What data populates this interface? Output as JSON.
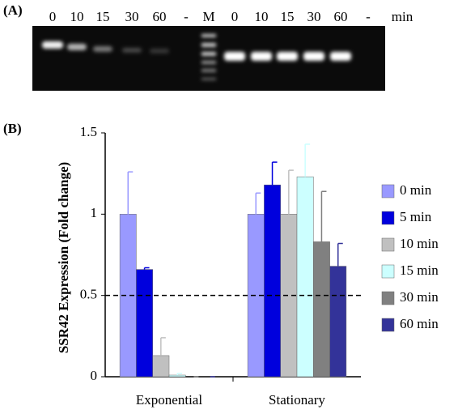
{
  "gel": {
    "panel_label": "(A)",
    "lane_labels": [
      "0",
      "10",
      "15",
      "30",
      "60",
      "-",
      "M",
      "0",
      "10",
      "15",
      "30",
      "60",
      "-",
      "min"
    ]
  },
  "chart_data": {
    "type": "bar",
    "panel_label": "(B)",
    "y_label": "SSR42 Expression (Fold change)",
    "categories": [
      "Exponential",
      "Stationary"
    ],
    "series": [
      {
        "name": "0 min",
        "color": "#9999ff",
        "values": [
          1.0,
          1.0
        ],
        "errors": [
          0.26,
          0.13
        ]
      },
      {
        "name": "5 min",
        "color": "#0000dd",
        "values": [
          0.66,
          1.18
        ],
        "errors": [
          0.01,
          0.14
        ]
      },
      {
        "name": "10 min",
        "color": "#c0c0c0",
        "values": [
          0.13,
          1.0
        ],
        "errors": [
          0.11,
          0.27
        ]
      },
      {
        "name": "15 min",
        "color": "#ccffff",
        "values": [
          0.01,
          1.23
        ],
        "errors": [
          0.01,
          0.2
        ]
      },
      {
        "name": "30 min",
        "color": "#808080",
        "values": [
          0,
          0.83
        ],
        "errors": [
          0,
          0.31
        ]
      },
      {
        "name": "60 min",
        "color": "#333399",
        "values": [
          0,
          0.68
        ],
        "errors": [
          0,
          0.14
        ]
      }
    ],
    "ylim": [
      0,
      1.5
    ],
    "yticks": [
      0,
      0.5,
      1,
      1.5
    ],
    "reference_line": 0.5
  }
}
